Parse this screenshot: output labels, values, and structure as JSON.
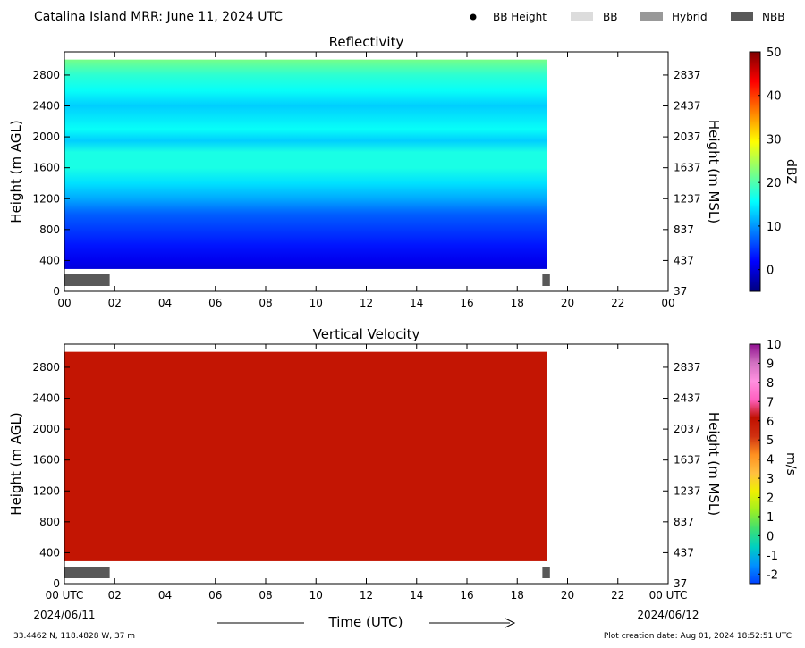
{
  "header": {
    "title": "Catalina Island MRR:  June 11, 2024 UTC",
    "legend": [
      {
        "label": "BB Height",
        "marker": "dot",
        "color": "#000000"
      },
      {
        "label": "BB",
        "marker": "box",
        "color": "#dcdcdc"
      },
      {
        "label": "Hybrid",
        "marker": "box",
        "color": "#999999"
      },
      {
        "label": "NBB",
        "marker": "box",
        "color": "#595959"
      }
    ]
  },
  "footer": {
    "location": "33.4462 N, 118.4828 W, 37 m",
    "creation": "Plot creation date: Aug 01, 2024 18:52:51 UTC",
    "time_axis_label": "Time (UTC)",
    "start_date": "2024/06/11",
    "end_date": "2024/06/12"
  },
  "chart_data": [
    {
      "type": "heatmap",
      "title": "Reflectivity",
      "ylabel": "Height (m AGL)",
      "ylabel_right": "Height (m MSL)",
      "x_ticks": [
        "00",
        "02",
        "04",
        "06",
        "08",
        "10",
        "12",
        "14",
        "16",
        "18",
        "20",
        "22",
        "00"
      ],
      "xlim_hours": [
        0,
        24
      ],
      "y_ticks": [
        0,
        400,
        800,
        1200,
        1600,
        2000,
        2400,
        2800
      ],
      "y_ticks_right": [
        37,
        437,
        837,
        1237,
        1637,
        2037,
        2437,
        2837
      ],
      "ylim": [
        0,
        3100
      ],
      "data_extent": {
        "t_start_h": 0,
        "t_end_h": 19.2,
        "z_bottom_m": 290,
        "z_top_m": 3000
      },
      "profile_dbz": [
        {
          "z": 290,
          "v": 0
        },
        {
          "z": 400,
          "v": 1
        },
        {
          "z": 600,
          "v": 3
        },
        {
          "z": 800,
          "v": 5
        },
        {
          "z": 1000,
          "v": 7
        },
        {
          "z": 1200,
          "v": 11
        },
        {
          "z": 1400,
          "v": 14
        },
        {
          "z": 1600,
          "v": 17
        },
        {
          "z": 1800,
          "v": 17
        },
        {
          "z": 1950,
          "v": 13
        },
        {
          "z": 2100,
          "v": 16
        },
        {
          "z": 2400,
          "v": 13
        },
        {
          "z": 2600,
          "v": 16
        },
        {
          "z": 2800,
          "v": 18
        },
        {
          "z": 3000,
          "v": 22
        }
      ],
      "bright_band_bars": [
        {
          "class": "NBB",
          "t_start_h": 0,
          "t_end_h": 1.8
        },
        {
          "class": "NBB",
          "t_start_h": 19.0,
          "t_end_h": 19.3
        }
      ],
      "colorbar": {
        "label": "dBZ",
        "ticks": [
          0,
          10,
          20,
          30,
          40,
          50
        ],
        "range": [
          -5,
          50
        ],
        "colors": [
          "#00007f",
          "#0000ff",
          "#007fff",
          "#00ffff",
          "#7fff7f",
          "#ffff00",
          "#ff7f00",
          "#ff0000",
          "#7f0000"
        ]
      }
    },
    {
      "type": "heatmap",
      "title": "Vertical Velocity",
      "ylabel": "Height (m AGL)",
      "ylabel_right": "Height (m MSL)",
      "x_ticks": [
        "00 UTC",
        "02",
        "04",
        "06",
        "08",
        "10",
        "12",
        "14",
        "16",
        "18",
        "20",
        "22",
        "00 UTC"
      ],
      "xlim_hours": [
        0,
        24
      ],
      "y_ticks": [
        0,
        400,
        800,
        1200,
        1600,
        2000,
        2400,
        2800
      ],
      "y_ticks_right": [
        37,
        437,
        837,
        1237,
        1637,
        2037,
        2437,
        2837
      ],
      "ylim": [
        0,
        3100
      ],
      "data_extent": {
        "t_start_h": 0,
        "t_end_h": 19.2,
        "z_bottom_m": 290,
        "z_top_m": 3000
      },
      "field_value_ms": 6,
      "bright_band_bars": [
        {
          "class": "NBB",
          "t_start_h": 0,
          "t_end_h": 1.8
        },
        {
          "class": "NBB",
          "t_start_h": 19.0,
          "t_end_h": 19.3
        }
      ],
      "colorbar": {
        "label": "m/s",
        "ticks": [
          -2,
          -1,
          0,
          1,
          2,
          3,
          4,
          5,
          6,
          7,
          8,
          9,
          10
        ],
        "range": [
          -2.5,
          10
        ],
        "colors": [
          "#0040ff",
          "#0090ff",
          "#00d0c0",
          "#40e070",
          "#a0f020",
          "#f0f000",
          "#ffc040",
          "#ff9020",
          "#d03010",
          "#c01000",
          "#ff60c0",
          "#ff90e0",
          "#d070c0",
          "#901090"
        ]
      }
    }
  ]
}
